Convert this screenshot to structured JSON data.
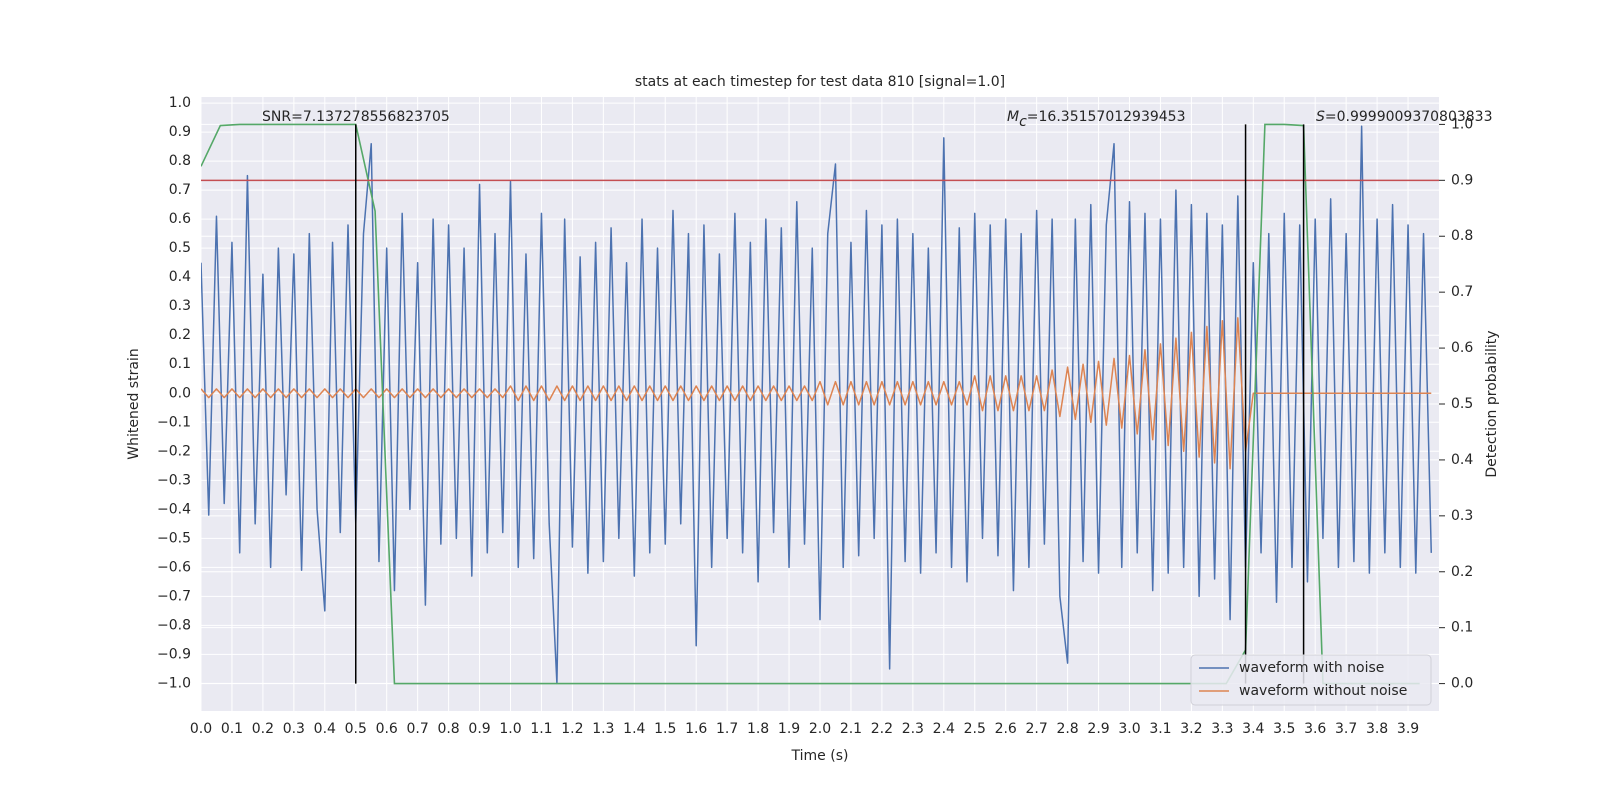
{
  "chart_data": {
    "type": "line",
    "title": "stats at each timestep for test data 810 [signal=1.0]",
    "xlabel": "Time (s)",
    "ylabel": "Whitened strain",
    "y2label": "Detection probability",
    "xlim": [
      0,
      4.0
    ],
    "ylim": [
      -1.095,
      1.021
    ],
    "y2lim": [
      -0.049,
      1.049
    ],
    "grid": true,
    "legend_loc": "lower right",
    "xticks": [
      {
        "value": 0,
        "label": "0.0"
      },
      0.1,
      0.2,
      0.3,
      0.4,
      0.5,
      0.6,
      0.7,
      0.8,
      0.9,
      {
        "value": 1,
        "label": "1.0"
      },
      1.1,
      1.2,
      1.3,
      1.4,
      1.5,
      1.6,
      1.7,
      1.8,
      1.9,
      {
        "value": 2,
        "label": "2.0"
      },
      2.1,
      2.2,
      2.3,
      2.4,
      2.5,
      2.6,
      2.7,
      2.8,
      2.9,
      {
        "value": 3,
        "label": "3.0"
      },
      3.1,
      3.2,
      3.3,
      3.4,
      3.5,
      3.6,
      3.7,
      3.8,
      3.9
    ],
    "yticks": [
      {
        "value": -1,
        "label": "−1.0"
      },
      {
        "value": -0.9,
        "label": "−0.9"
      },
      {
        "value": -0.8,
        "label": "−0.8"
      },
      {
        "value": -0.7,
        "label": "−0.7"
      },
      {
        "value": -0.6,
        "label": "−0.6"
      },
      {
        "value": -0.5,
        "label": "−0.5"
      },
      {
        "value": -0.4,
        "label": "−0.4"
      },
      {
        "value": -0.3,
        "label": "−0.3"
      },
      {
        "value": -0.2,
        "label": "−0.2"
      },
      {
        "value": -0.1,
        "label": "−0.1"
      },
      {
        "value": 0,
        "label": "0.0"
      },
      0.1,
      0.2,
      0.3,
      0.4,
      0.5,
      0.6,
      0.7,
      0.8,
      0.9,
      {
        "value": 1,
        "label": "1.0"
      }
    ],
    "y2ticks": [
      {
        "value": 0,
        "label": "0.0"
      },
      0.1,
      0.2,
      0.3,
      0.4,
      0.5,
      0.6,
      0.7,
      0.8,
      0.9,
      {
        "value": 1,
        "label": "1.0"
      }
    ],
    "x": [
      0,
      0.025,
      0.05,
      0.075,
      0.1,
      0.125,
      0.15,
      0.175,
      0.2,
      0.225,
      0.25,
      0.275,
      0.3,
      0.325,
      0.35,
      0.375,
      0.4,
      0.425,
      0.45,
      0.475,
      0.5,
      0.525,
      0.55,
      0.575,
      0.6,
      0.625,
      0.65,
      0.675,
      0.7,
      0.725,
      0.75,
      0.775,
      0.8,
      0.825,
      0.85,
      0.875,
      0.9,
      0.925,
      0.95,
      0.975,
      1,
      1.025,
      1.05,
      1.075,
      1.1,
      1.125,
      1.15,
      1.175,
      1.2,
      1.225,
      1.25,
      1.275,
      1.3,
      1.325,
      1.35,
      1.375,
      1.4,
      1.425,
      1.45,
      1.475,
      1.5,
      1.525,
      1.55,
      1.575,
      1.6,
      1.625,
      1.65,
      1.675,
      1.7,
      1.725,
      1.75,
      1.775,
      1.8,
      1.825,
      1.85,
      1.875,
      1.9,
      1.925,
      1.95,
      1.975,
      2,
      2.025,
      2.05,
      2.075,
      2.1,
      2.125,
      2.15,
      2.175,
      2.2,
      2.225,
      2.25,
      2.275,
      2.3,
      2.325,
      2.35,
      2.375,
      2.4,
      2.425,
      2.45,
      2.475,
      2.5,
      2.525,
      2.55,
      2.575,
      2.6,
      2.625,
      2.65,
      2.675,
      2.7,
      2.725,
      2.75,
      2.775,
      2.8,
      2.825,
      2.85,
      2.875,
      2.9,
      2.925,
      2.95,
      2.975,
      3,
      3.025,
      3.05,
      3.075,
      3.1,
      3.125,
      3.15,
      3.175,
      3.2,
      3.225,
      3.25,
      3.275,
      3.3,
      3.325,
      3.35,
      3.375,
      3.4,
      3.425,
      3.45,
      3.475,
      3.5,
      3.525,
      3.55,
      3.575,
      3.6,
      3.625,
      3.65,
      3.675,
      3.7,
      3.725,
      3.75,
      3.775,
      3.8,
      3.825,
      3.85,
      3.875,
      3.9,
      3.925,
      3.95,
      3.975
    ],
    "series": [
      {
        "name": "waveform with noise",
        "color": "#4c72b0",
        "values": [
          0.45,
          -0.42,
          0.61,
          -0.38,
          0.52,
          -0.55,
          0.75,
          -0.45,
          0.41,
          -0.6,
          0.5,
          -0.35,
          0.48,
          -0.61,
          0.55,
          -0.4,
          -0.75,
          0.52,
          -0.48,
          0.58,
          -0.45,
          0.55,
          0.86,
          -0.58,
          0.5,
          -0.68,
          0.62,
          -0.4,
          0.45,
          -0.73,
          0.6,
          -0.52,
          0.58,
          -0.5,
          0.5,
          -0.63,
          0.72,
          -0.55,
          0.55,
          -0.48,
          0.73,
          -0.6,
          0.48,
          -0.57,
          0.62,
          -0.45,
          -1.0,
          0.6,
          -0.53,
          0.47,
          -0.62,
          0.52,
          -0.58,
          0.57,
          -0.5,
          0.45,
          -0.63,
          0.6,
          -0.55,
          0.5,
          -0.52,
          0.63,
          -0.45,
          0.55,
          -0.87,
          0.58,
          -0.6,
          0.48,
          -0.5,
          0.62,
          -0.55,
          0.52,
          -0.65,
          0.6,
          -0.48,
          0.57,
          -0.6,
          0.66,
          -0.52,
          0.5,
          -0.78,
          0.55,
          0.79,
          -0.6,
          0.52,
          -0.56,
          0.63,
          -0.5,
          0.58,
          -0.95,
          0.6,
          -0.58,
          0.55,
          -0.62,
          0.5,
          -0.55,
          0.88,
          -0.6,
          0.57,
          -0.65,
          0.62,
          -0.5,
          0.58,
          -0.56,
          0.6,
          -0.68,
          0.55,
          -0.6,
          0.63,
          -0.52,
          0.6,
          -0.7,
          -0.93,
          0.6,
          -0.58,
          0.65,
          -0.62,
          0.58,
          0.86,
          -0.6,
          0.66,
          -0.55,
          0.62,
          -0.68,
          0.6,
          -0.62,
          0.7,
          -0.6,
          0.65,
          -0.7,
          0.62,
          -0.64,
          0.58,
          -0.78,
          0.68,
          -0.6,
          0.45,
          -0.55,
          0.55,
          -0.72,
          0.62,
          -0.6,
          0.58,
          -0.65,
          0.6,
          -0.5,
          0.67,
          -0.6,
          0.55,
          -0.58,
          0.92,
          -0.62,
          0.6,
          -0.55,
          0.65,
          -0.6,
          0.58,
          -0.62,
          0.55,
          -0.55
        ]
      },
      {
        "name": "waveform without noise",
        "color": "#dd8452",
        "values": [
          0.015,
          -0.015,
          0.015,
          -0.015,
          0.015,
          -0.015,
          0.015,
          -0.015,
          0.015,
          -0.015,
          0.015,
          -0.015,
          0.015,
          -0.015,
          0.015,
          -0.015,
          0.015,
          -0.015,
          0.015,
          -0.015,
          0.015,
          -0.015,
          0.015,
          -0.015,
          0.015,
          -0.015,
          0.015,
          -0.015,
          0.015,
          -0.015,
          0.015,
          -0.015,
          0.015,
          -0.015,
          0.015,
          -0.015,
          0.015,
          -0.015,
          0.015,
          -0.015,
          0.025,
          -0.025,
          0.025,
          -0.025,
          0.025,
          -0.025,
          0.025,
          -0.025,
          0.025,
          -0.025,
          0.025,
          -0.025,
          0.025,
          -0.025,
          0.025,
          -0.025,
          0.025,
          -0.025,
          0.025,
          -0.025,
          0.025,
          -0.025,
          0.025,
          -0.025,
          0.025,
          -0.025,
          0.025,
          -0.025,
          0.025,
          -0.025,
          0.025,
          -0.025,
          0.025,
          -0.025,
          0.025,
          -0.025,
          0.025,
          -0.025,
          0.025,
          -0.025,
          0.04,
          -0.04,
          0.04,
          -0.04,
          0.04,
          -0.04,
          0.04,
          -0.04,
          0.04,
          -0.04,
          0.04,
          -0.04,
          0.04,
          -0.04,
          0.04,
          -0.04,
          0.04,
          -0.04,
          0.04,
          -0.04,
          0.06,
          -0.06,
          0.06,
          -0.06,
          0.06,
          -0.06,
          0.06,
          -0.06,
          0.06,
          -0.06,
          0.08,
          -0.08,
          0.09,
          -0.09,
          0.1,
          -0.1,
          0.11,
          -0.11,
          0.12,
          -0.12,
          0.13,
          -0.14,
          0.15,
          -0.16,
          0.17,
          -0.18,
          0.19,
          -0.2,
          0.21,
          -0.22,
          0.23,
          -0.24,
          0.25,
          -0.26,
          0.26,
          -0.2,
          0,
          0,
          0,
          0,
          0,
          0,
          0,
          0,
          0,
          0,
          0,
          0,
          0,
          0,
          0,
          0,
          0,
          0,
          0,
          0,
          0,
          0,
          0,
          0
        ]
      }
    ],
    "probability": {
      "axis": "y2",
      "color": "#55a868",
      "x": [
        0,
        0.0625,
        0.125,
        0.1875,
        0.25,
        0.3125,
        0.375,
        0.4375,
        0.5,
        0.5625,
        0.625,
        0.6875,
        0.75,
        0.8125,
        0.875,
        0.9375,
        1,
        1.0625,
        1.125,
        1.1875,
        1.25,
        1.3125,
        1.375,
        1.4375,
        1.5,
        1.5625,
        1.625,
        1.6875,
        1.75,
        1.8125,
        1.875,
        1.9375,
        2,
        2.0625,
        2.125,
        2.1875,
        2.25,
        2.3125,
        2.375,
        2.4375,
        2.5,
        2.5625,
        2.625,
        2.6875,
        2.75,
        2.8125,
        2.875,
        2.9375,
        3,
        3.0625,
        3.125,
        3.1875,
        3.25,
        3.3125,
        3.375,
        3.4375,
        3.5,
        3.5625,
        3.625,
        3.6875,
        3.75,
        3.8125,
        3.875,
        3.9375
      ],
      "values": [
        0.925,
        0.998,
        1.0,
        1.0,
        1.0,
        1.0,
        1.0,
        1.0,
        1.0,
        0.845,
        0,
        0,
        0,
        0,
        0,
        0,
        0,
        0,
        0,
        0,
        0,
        0,
        0,
        0,
        0,
        0,
        0,
        0,
        0,
        0,
        0,
        0,
        0,
        0,
        0,
        0,
        0,
        0,
        0,
        0,
        0,
        0,
        0,
        0,
        0,
        0,
        0,
        0,
        0,
        0,
        0,
        0,
        0,
        0,
        0.06,
        1.0,
        1.0,
        0.998,
        0,
        0,
        0,
        0,
        0,
        0
      ]
    },
    "threshold": {
      "axis": "y2",
      "color": "#c44e52",
      "value": 0.9
    },
    "vlines": {
      "axis": "y2",
      "color": "#000000",
      "x": [
        0.5,
        3.375,
        3.5625
      ],
      "span": [
        0,
        1
      ]
    },
    "annotations": [
      {
        "text": "SNR=7.137278556823705"
      },
      {
        "symbol": "M",
        "subscript": "c",
        "text": "=16.35157012939453"
      },
      {
        "symbol": "S",
        "text": "=0.9999009370803833"
      }
    ]
  }
}
